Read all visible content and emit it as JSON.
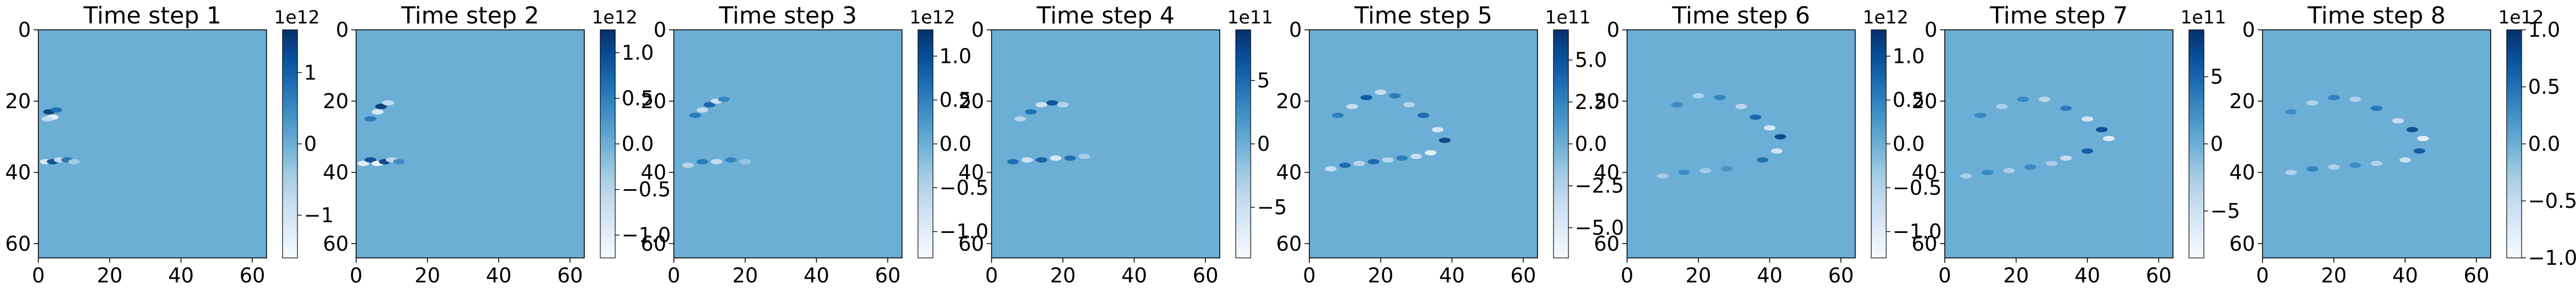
{
  "figure": {
    "background": "#ffffff",
    "field_color": "#6baed6",
    "colormap": "Blues",
    "colormap_stops": [
      "#f7fbff",
      "#deebf7",
      "#c6dbef",
      "#9ecae1",
      "#6baed6",
      "#4292c6",
      "#2171b5",
      "#08519c",
      "#08306b"
    ]
  },
  "chart_data": [
    {
      "type": "heatmap",
      "title": "Time step 1",
      "x_ticks": [
        "0",
        "20",
        "40",
        "60"
      ],
      "y_ticks": [
        "0",
        "20",
        "40",
        "60"
      ],
      "xlim": [
        0,
        64
      ],
      "ylim": [
        64,
        0
      ],
      "colorbar": {
        "exponent": "1e12",
        "range": [
          -1.6,
          1.6
        ],
        "ticks": [
          1,
          0,
          -1
        ],
        "tick_labels": [
          "1",
          "0",
          "−1"
        ]
      },
      "features": [
        {
          "x": 3,
          "y": 23,
          "v": 1.5
        },
        {
          "x": 4,
          "y": 24.5,
          "v": -1.5
        },
        {
          "x": 5,
          "y": 22.5,
          "v": 0.9
        },
        {
          "x": 2.5,
          "y": 25,
          "v": -0.8
        },
        {
          "x": 2,
          "y": 37,
          "v": -1.2
        },
        {
          "x": 4,
          "y": 37,
          "v": 1.3
        },
        {
          "x": 6,
          "y": 36.5,
          "v": -0.9
        },
        {
          "x": 8,
          "y": 36.5,
          "v": 0.8
        },
        {
          "x": 10,
          "y": 37,
          "v": -0.5
        }
      ]
    },
    {
      "type": "heatmap",
      "title": "Time step 2",
      "x_ticks": [
        "0",
        "20",
        "40",
        "60"
      ],
      "y_ticks": [
        "0",
        "20",
        "40",
        "60"
      ],
      "xlim": [
        0,
        64
      ],
      "ylim": [
        64,
        0
      ],
      "colorbar": {
        "exponent": "1e12",
        "range": [
          -1.25,
          1.25
        ],
        "ticks": [
          1,
          0.5,
          0,
          -0.5,
          -1
        ],
        "tick_labels": [
          "1.0",
          "0.5",
          "0.0",
          "−0.5",
          "−1.0"
        ]
      },
      "features": [
        {
          "x": 6,
          "y": 23,
          "v": -1.0
        },
        {
          "x": 7,
          "y": 21.5,
          "v": 1.2
        },
        {
          "x": 9,
          "y": 20.5,
          "v": -0.7
        },
        {
          "x": 4,
          "y": 25,
          "v": 0.6
        },
        {
          "x": 2,
          "y": 37.5,
          "v": -1.1
        },
        {
          "x": 4,
          "y": 36.5,
          "v": 1.0
        },
        {
          "x": 6,
          "y": 37.5,
          "v": -1.2
        },
        {
          "x": 8,
          "y": 37,
          "v": 1.1
        },
        {
          "x": 10,
          "y": 36.5,
          "v": -0.6
        },
        {
          "x": 12,
          "y": 37,
          "v": 0.4
        }
      ]
    },
    {
      "type": "heatmap",
      "title": "Time step 3",
      "x_ticks": [
        "0",
        "20",
        "40",
        "60"
      ],
      "y_ticks": [
        "0",
        "20",
        "40",
        "60"
      ],
      "xlim": [
        0,
        64
      ],
      "ylim": [
        64,
        0
      ],
      "colorbar": {
        "exponent": "1e12",
        "range": [
          -1.3,
          1.3
        ],
        "ticks": [
          1,
          0.5,
          0,
          -0.5,
          -1
        ],
        "tick_labels": [
          "1.0",
          "0.5",
          "0.0",
          "−0.5",
          "−1.0"
        ]
      },
      "features": [
        {
          "x": 6,
          "y": 24,
          "v": 0.6
        },
        {
          "x": 8,
          "y": 22.5,
          "v": -0.7
        },
        {
          "x": 10,
          "y": 21,
          "v": 0.8
        },
        {
          "x": 12,
          "y": 20,
          "v": -0.9
        },
        {
          "x": 14,
          "y": 19.5,
          "v": 0.5
        },
        {
          "x": 4,
          "y": 38,
          "v": -0.6
        },
        {
          "x": 8,
          "y": 37,
          "v": 0.6
        },
        {
          "x": 12,
          "y": 37,
          "v": -0.7
        },
        {
          "x": 16,
          "y": 36.5,
          "v": 0.5
        },
        {
          "x": 20,
          "y": 37,
          "v": -0.3
        }
      ]
    },
    {
      "type": "heatmap",
      "title": "Time step 4",
      "x_ticks": [
        "0",
        "20",
        "40",
        "60"
      ],
      "y_ticks": [
        "0",
        "20",
        "40",
        "60"
      ],
      "xlim": [
        0,
        64
      ],
      "ylim": [
        64,
        0
      ],
      "colorbar": {
        "exponent": "1e11",
        "range": [
          -9,
          9
        ],
        "ticks": [
          5,
          0,
          -5
        ],
        "tick_labels": [
          "5",
          "0",
          "−5"
        ]
      },
      "features": [
        {
          "x": 8,
          "y": 25,
          "v": -4
        },
        {
          "x": 11,
          "y": 23,
          "v": 5
        },
        {
          "x": 14,
          "y": 21,
          "v": -6
        },
        {
          "x": 17,
          "y": 20.5,
          "v": 7
        },
        {
          "x": 20,
          "y": 21,
          "v": -4
        },
        {
          "x": 6,
          "y": 37,
          "v": 5
        },
        {
          "x": 10,
          "y": 36.5,
          "v": -6
        },
        {
          "x": 14,
          "y": 36.5,
          "v": 6
        },
        {
          "x": 18,
          "y": 36,
          "v": -7
        },
        {
          "x": 22,
          "y": 36,
          "v": 5
        },
        {
          "x": 26,
          "y": 35.5,
          "v": -3
        }
      ]
    },
    {
      "type": "heatmap",
      "title": "Time step 5",
      "x_ticks": [
        "0",
        "20",
        "40",
        "60"
      ],
      "y_ticks": [
        "0",
        "20",
        "40",
        "60"
      ],
      "xlim": [
        0,
        64
      ],
      "ylim": [
        64,
        0
      ],
      "colorbar": {
        "exponent": "1e11",
        "range": [
          -6.8,
          6.8
        ],
        "ticks": [
          5,
          2.5,
          0,
          -2.5,
          -5
        ],
        "tick_labels": [
          "5.0",
          "2.5",
          "0.0",
          "−2.5",
          "−5.0"
        ]
      },
      "features": [
        {
          "x": 8,
          "y": 24,
          "v": 3
        },
        {
          "x": 12,
          "y": 21.5,
          "v": -4
        },
        {
          "x": 16,
          "y": 19,
          "v": 5
        },
        {
          "x": 20,
          "y": 17.5,
          "v": -4
        },
        {
          "x": 24,
          "y": 18.5,
          "v": 3
        },
        {
          "x": 28,
          "y": 21,
          "v": -3
        },
        {
          "x": 32,
          "y": 24,
          "v": 4
        },
        {
          "x": 36,
          "y": 28,
          "v": -5
        },
        {
          "x": 38,
          "y": 31,
          "v": 6
        },
        {
          "x": 34,
          "y": 34.5,
          "v": -6
        },
        {
          "x": 6,
          "y": 39,
          "v": -4
        },
        {
          "x": 10,
          "y": 38,
          "v": 4
        },
        {
          "x": 14,
          "y": 37.5,
          "v": -3
        },
        {
          "x": 18,
          "y": 37,
          "v": 4
        },
        {
          "x": 22,
          "y": 36.5,
          "v": -3
        },
        {
          "x": 26,
          "y": 36,
          "v": 3
        },
        {
          "x": 30,
          "y": 35.5,
          "v": -4
        }
      ]
    },
    {
      "type": "heatmap",
      "title": "Time step 6",
      "x_ticks": [
        "0",
        "20",
        "40",
        "60"
      ],
      "y_ticks": [
        "0",
        "20",
        "40",
        "60"
      ],
      "xlim": [
        0,
        64
      ],
      "ylim": [
        64,
        0
      ],
      "colorbar": {
        "exponent": "1e12",
        "range": [
          -1.3,
          1.3
        ],
        "ticks": [
          1,
          0.5,
          0,
          -0.5,
          -1
        ],
        "tick_labels": [
          "1.0",
          "0.5",
          "0.0",
          "−0.5",
          "−1.0"
        ]
      },
      "features": [
        {
          "x": 14,
          "y": 21,
          "v": 0.4
        },
        {
          "x": 20,
          "y": 18.5,
          "v": -0.5
        },
        {
          "x": 26,
          "y": 19,
          "v": 0.5
        },
        {
          "x": 32,
          "y": 21.5,
          "v": -0.6
        },
        {
          "x": 36,
          "y": 24.5,
          "v": 0.8
        },
        {
          "x": 40,
          "y": 27.5,
          "v": -1.0
        },
        {
          "x": 43,
          "y": 30,
          "v": 1.1
        },
        {
          "x": 42,
          "y": 34,
          "v": -0.9
        },
        {
          "x": 38,
          "y": 36.5,
          "v": 0.7
        },
        {
          "x": 10,
          "y": 41,
          "v": -0.4
        },
        {
          "x": 16,
          "y": 40,
          "v": 0.4
        },
        {
          "x": 22,
          "y": 39.5,
          "v": -0.4
        },
        {
          "x": 28,
          "y": 39,
          "v": 0.3
        }
      ]
    },
    {
      "type": "heatmap",
      "title": "Time step 7",
      "x_ticks": [
        "0",
        "20",
        "40",
        "60"
      ],
      "y_ticks": [
        "0",
        "20",
        "40",
        "60"
      ],
      "xlim": [
        0,
        64
      ],
      "ylim": [
        64,
        0
      ],
      "colorbar": {
        "exponent": "1e11",
        "range": [
          -8.5,
          8.5
        ],
        "ticks": [
          5,
          0,
          -5
        ],
        "tick_labels": [
          "5",
          "0",
          "−5"
        ]
      },
      "features": [
        {
          "x": 10,
          "y": 24,
          "v": 3
        },
        {
          "x": 16,
          "y": 21.5,
          "v": -3
        },
        {
          "x": 22,
          "y": 19.5,
          "v": 3
        },
        {
          "x": 28,
          "y": 19.5,
          "v": -4
        },
        {
          "x": 34,
          "y": 22,
          "v": 4
        },
        {
          "x": 40,
          "y": 25,
          "v": -6
        },
        {
          "x": 44,
          "y": 28,
          "v": 7
        },
        {
          "x": 46,
          "y": 30.5,
          "v": -7
        },
        {
          "x": 40,
          "y": 34,
          "v": 6
        },
        {
          "x": 34,
          "y": 36,
          "v": -5
        },
        {
          "x": 6,
          "y": 41,
          "v": -3
        },
        {
          "x": 12,
          "y": 40,
          "v": 3
        },
        {
          "x": 18,
          "y": 39.5,
          "v": -3
        },
        {
          "x": 24,
          "y": 38.5,
          "v": 3
        },
        {
          "x": 30,
          "y": 37.5,
          "v": -3
        }
      ]
    },
    {
      "type": "heatmap",
      "title": "Time step 8",
      "x_ticks": [
        "0",
        "20",
        "40",
        "60"
      ],
      "y_ticks": [
        "0",
        "20",
        "40",
        "60"
      ],
      "xlim": [
        0,
        64
      ],
      "ylim": [
        64,
        0
      ],
      "colorbar": {
        "exponent": "1e12",
        "range": [
          -1.0,
          1.0
        ],
        "ticks": [
          1,
          0.5,
          0,
          -0.5,
          -1
        ],
        "tick_labels": [
          "1.0",
          "0.5",
          "0.0",
          "−0.5",
          "−1.0"
        ]
      },
      "features": [
        {
          "x": 8,
          "y": 23,
          "v": 0.3
        },
        {
          "x": 14,
          "y": 20.5,
          "v": -0.4
        },
        {
          "x": 20,
          "y": 19,
          "v": 0.4
        },
        {
          "x": 26,
          "y": 19.5,
          "v": -0.4
        },
        {
          "x": 32,
          "y": 22,
          "v": 0.5
        },
        {
          "x": 38,
          "y": 25.5,
          "v": -0.6
        },
        {
          "x": 42,
          "y": 28,
          "v": 0.8
        },
        {
          "x": 45,
          "y": 30.5,
          "v": -0.9
        },
        {
          "x": 44,
          "y": 34,
          "v": 0.7
        },
        {
          "x": 40,
          "y": 36.5,
          "v": -0.6
        },
        {
          "x": 8,
          "y": 40,
          "v": -0.4
        },
        {
          "x": 14,
          "y": 39,
          "v": 0.4
        },
        {
          "x": 20,
          "y": 38.5,
          "v": -0.4
        },
        {
          "x": 26,
          "y": 38,
          "v": 0.3
        },
        {
          "x": 32,
          "y": 37.5,
          "v": -0.4
        }
      ]
    }
  ]
}
